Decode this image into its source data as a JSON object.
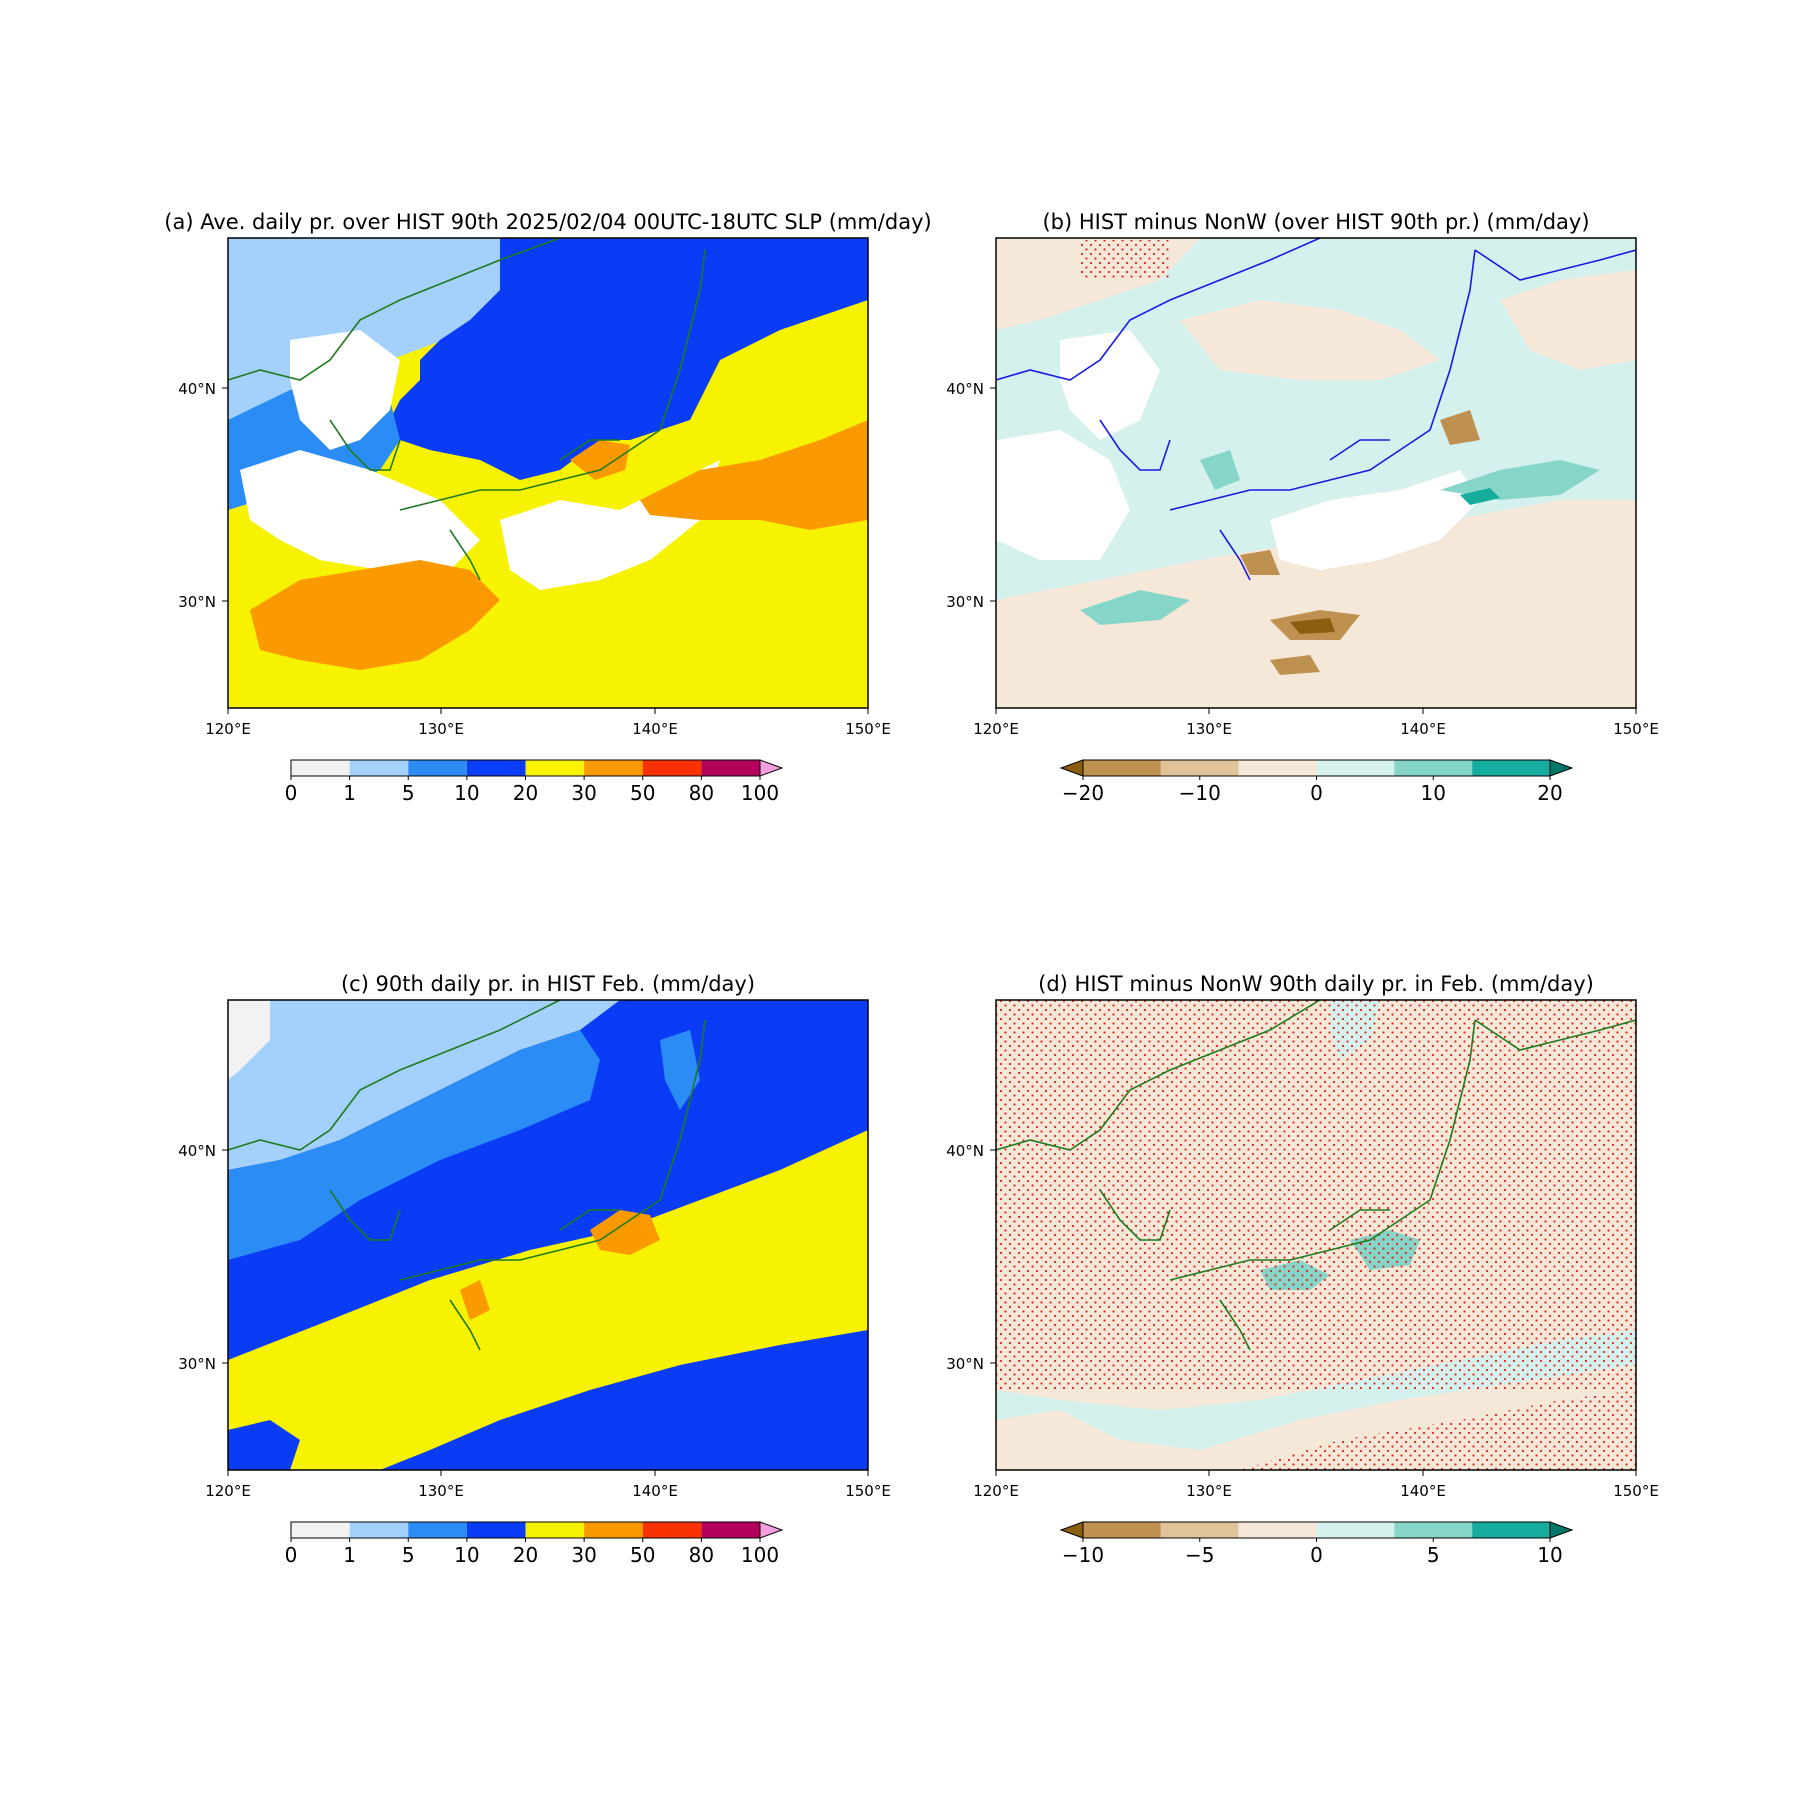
{
  "panels": [
    {
      "id": "a",
      "title": "(a) Ave. daily pr. over HIST 90th 2025/02/04 00UTC-18UTC SLP (mm/day)",
      "xticks": [
        "120°E",
        "130°E",
        "140°E",
        "150°E"
      ],
      "yticks": [
        "40°N",
        "30°N"
      ],
      "colorbar": {
        "ticks": [
          "0",
          "1",
          "5",
          "10",
          "20",
          "30",
          "50",
          "80",
          "100"
        ],
        "colors": [
          "#f2f2f2",
          "#a3d1fb",
          "#2b8cf5",
          "#0a3cf5",
          "#f7f200",
          "#fa9a00",
          "#f83200",
          "#b2005c"
        ],
        "extend_color": "#f59ee0"
      },
      "coast_color": "#1f7a1f"
    },
    {
      "id": "b",
      "title": "(b) HIST minus NonW (over HIST 90th pr.) (mm/day)",
      "xticks": [
        "120°E",
        "130°E",
        "140°E",
        "150°E"
      ],
      "yticks": [
        "40°N",
        "30°N"
      ],
      "colorbar": {
        "ticks": [
          "−20",
          "−10",
          "0",
          "10",
          "20"
        ],
        "colors": [
          "#8c5e10",
          "#bf9150",
          "#dfc49a",
          "#f6e8d8",
          "#d5f1ee",
          "#86d5c9",
          "#16ad9f",
          "#01786a"
        ]
      },
      "coast_color": "#1a1ae6"
    },
    {
      "id": "c",
      "title": "(c) 90th daily pr. in HIST Feb. (mm/day)",
      "xticks": [
        "120°E",
        "130°E",
        "140°E",
        "150°E"
      ],
      "yticks": [
        "40°N",
        "30°N"
      ],
      "colorbar": {
        "ticks": [
          "0",
          "1",
          "5",
          "10",
          "20",
          "30",
          "50",
          "80",
          "100"
        ],
        "colors": [
          "#f2f2f2",
          "#a3d1fb",
          "#2b8cf5",
          "#0a3cf5",
          "#f7f200",
          "#fa9a00",
          "#f83200",
          "#b2005c"
        ],
        "extend_color": "#f59ee0"
      },
      "coast_color": "#1f7a1f"
    },
    {
      "id": "d",
      "title": "(d) HIST minus NonW 90th daily pr. in Feb. (mm/day)",
      "xticks": [
        "120°E",
        "130°E",
        "140°E",
        "150°E"
      ],
      "yticks": [
        "40°N",
        "30°N"
      ],
      "colorbar": {
        "ticks": [
          "−10",
          "−5",
          "0",
          "5",
          "10"
        ],
        "colors": [
          "#8c5e10",
          "#bf9150",
          "#dfc49a",
          "#f6e8d8",
          "#d5f1ee",
          "#86d5c9",
          "#16ad9f",
          "#01786a"
        ]
      },
      "coast_color": "#1f7a1f"
    }
  ],
  "map_extent": {
    "lon": [
      120,
      150
    ],
    "lat": [
      25,
      47
    ]
  }
}
